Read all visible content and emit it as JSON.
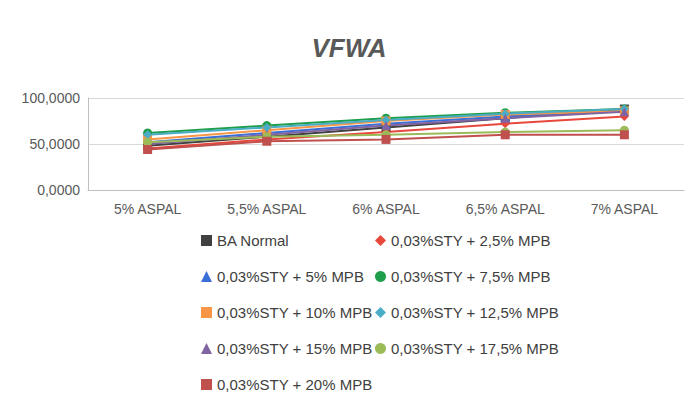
{
  "chart_data": {
    "type": "line",
    "title": "VFWA",
    "categories": [
      "5% ASPAL",
      "5,5% ASPAL",
      "6% ASPAL",
      "6,5% ASPAL",
      "7% ASPAL"
    ],
    "ylim": [
      0,
      100
    ],
    "yticks": [
      {
        "value": 0,
        "label": "0,0000"
      },
      {
        "value": 50,
        "label": "50,0000"
      },
      {
        "value": 100,
        "label": "100,0000"
      }
    ],
    "grid": true,
    "legend": "bottom",
    "line_style": "solid",
    "series": [
      {
        "name": "BA Normal",
        "color": "#404040",
        "marker": "square",
        "values": [
          48,
          58,
          68,
          78,
          88
        ]
      },
      {
        "name": "0,03%STY + 2,5% MPB",
        "color": "#e8473c",
        "marker": "diamond",
        "values": [
          45,
          55,
          63,
          72,
          80
        ]
      },
      {
        "name": "0,03%STY + 5% MPB",
        "color": "#3a6fd8",
        "marker": "triangle",
        "values": [
          52,
          62,
          72,
          80,
          86
        ]
      },
      {
        "name": "0,03%STY + 7,5% MPB",
        "color": "#1e9e4a",
        "marker": "circle",
        "values": [
          62,
          70,
          78,
          84,
          88
        ]
      },
      {
        "name": "0,03%STY + 10% MPB",
        "color": "#f79646",
        "marker": "square",
        "values": [
          55,
          65,
          75,
          82,
          86
        ]
      },
      {
        "name": "0,03%STY + 12,5% MPB",
        "color": "#4bacc6",
        "marker": "diamond",
        "values": [
          60,
          68,
          76,
          83,
          88
        ]
      },
      {
        "name": "0,03%STY + 15% MPB",
        "color": "#8064a2",
        "marker": "triangle",
        "values": [
          50,
          60,
          70,
          78,
          85
        ]
      },
      {
        "name": "0,03%STY + 17,5% MPB",
        "color": "#9bbb59",
        "marker": "circle",
        "values": [
          52,
          58,
          60,
          63,
          65
        ]
      },
      {
        "name": "0,03%STY + 20% MPB",
        "color": "#c0504d",
        "marker": "square",
        "values": [
          44,
          53,
          55,
          60,
          60
        ]
      }
    ]
  }
}
